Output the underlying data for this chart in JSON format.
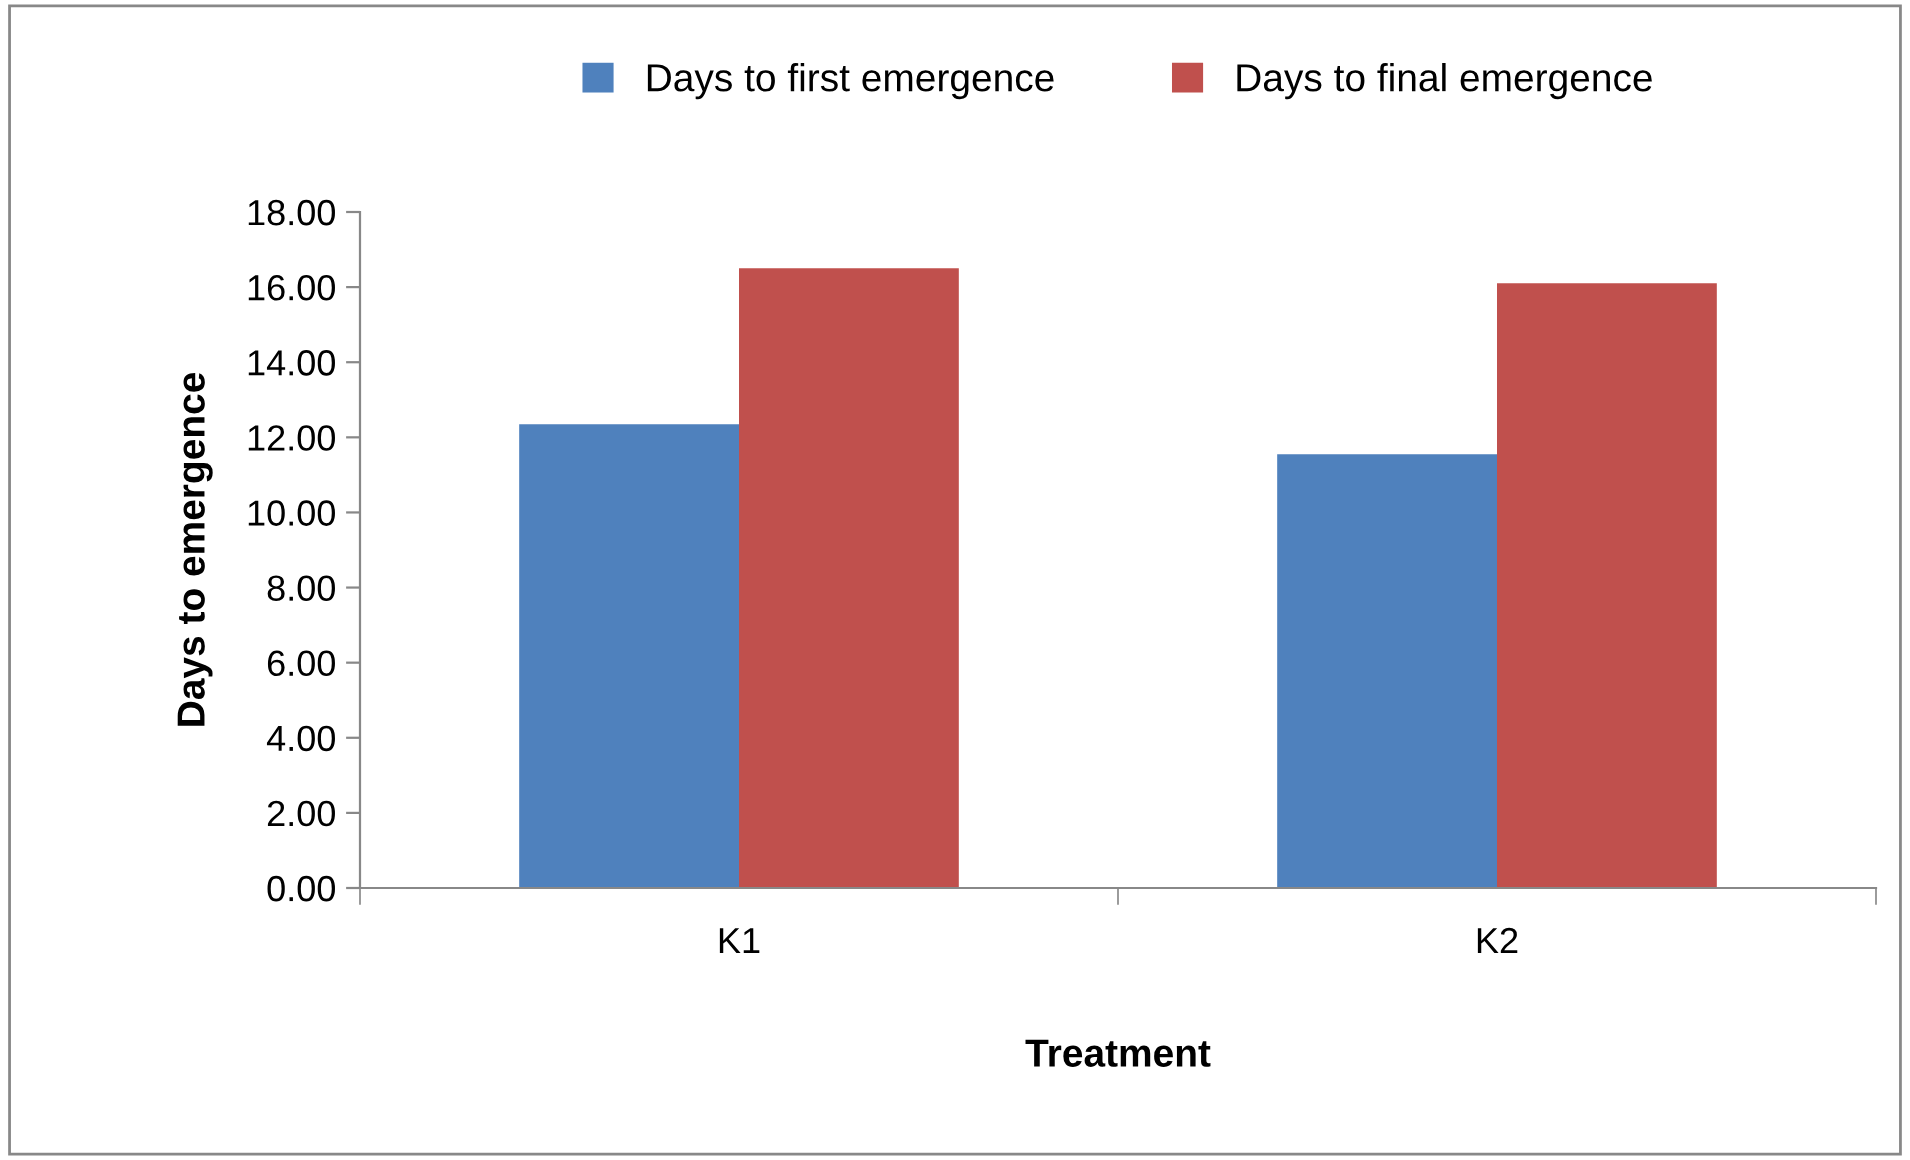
{
  "chart_data": {
    "type": "bar",
    "xlabel": "Treatment",
    "ylabel": "Days to emergence",
    "categories": [
      "K1",
      "K2"
    ],
    "series": [
      {
        "name": "Days to first emergence",
        "color": "#4f81bd",
        "values": [
          12.35,
          11.55
        ]
      },
      {
        "name": "Days to final emergence",
        "color": "#c0504d",
        "values": [
          16.5,
          16.1
        ]
      }
    ],
    "ylim": [
      0,
      18
    ],
    "yticks": [
      {
        "value": 0,
        "label": "0.00"
      },
      {
        "value": 2,
        "label": "2.00"
      },
      {
        "value": 4,
        "label": "4.00"
      },
      {
        "value": 6,
        "label": "6.00"
      },
      {
        "value": 8,
        "label": "8.00"
      },
      {
        "value": 10,
        "label": "10.00"
      },
      {
        "value": 12,
        "label": "12.00"
      },
      {
        "value": 14,
        "label": "14.00"
      },
      {
        "value": 16,
        "label": "16.00"
      },
      {
        "value": 18,
        "label": "18.00"
      }
    ],
    "grid": false,
    "legend": "top"
  }
}
